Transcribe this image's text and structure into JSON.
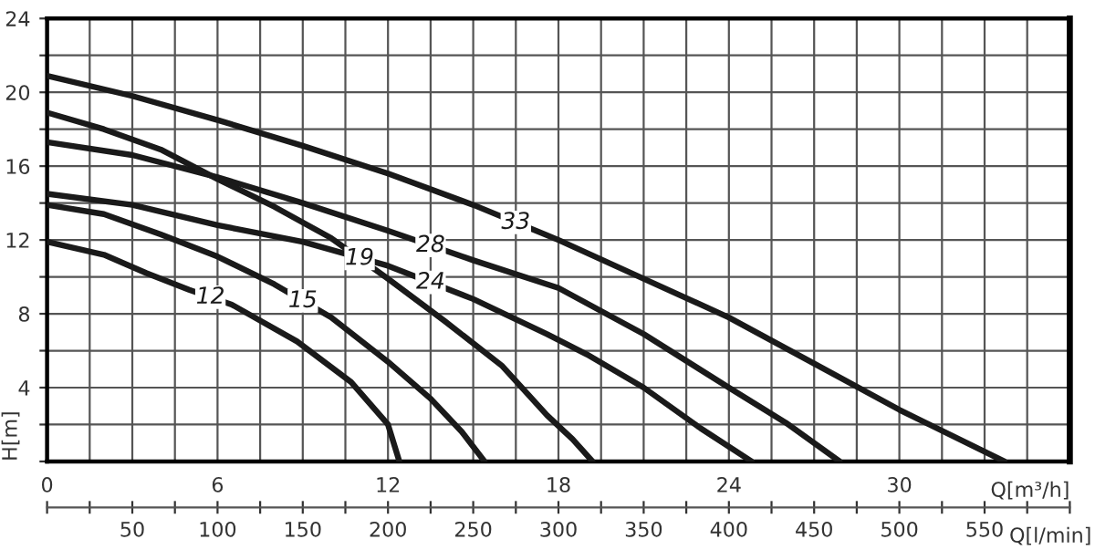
{
  "chart_data": {
    "type": "line",
    "xlabel": "Q[m³/h]",
    "ylabel": "H[m]",
    "x2label": "Q[l/min]",
    "xlim": [
      0,
      36
    ],
    "ylim": [
      0,
      24
    ],
    "x2lim": [
      0,
      600
    ],
    "xticks": [
      0,
      {
        "value": 1.5,
        "label": null
      },
      {
        "value": 3,
        "label": null
      },
      {
        "value": 4.5,
        "label": null
      },
      6,
      {
        "value": 7.5,
        "label": null
      },
      {
        "value": 9,
        "label": null
      },
      {
        "value": 10.5,
        "label": null
      },
      12,
      {
        "value": 13.5,
        "label": null
      },
      {
        "value": 15,
        "label": null
      },
      {
        "value": 16.5,
        "label": null
      },
      18,
      {
        "value": 19.5,
        "label": null
      },
      {
        "value": 21,
        "label": null
      },
      {
        "value": 22.5,
        "label": null
      },
      24,
      {
        "value": 25.5,
        "label": null
      },
      {
        "value": 27,
        "label": null
      },
      {
        "value": 28.5,
        "label": null
      },
      30,
      {
        "value": 31.5,
        "label": null
      },
      {
        "value": 33,
        "label": null
      },
      {
        "value": 34.5,
        "label": null
      },
      {
        "value": 36,
        "label": null
      }
    ],
    "yticks": [
      {
        "value": 0,
        "label": null
      },
      {
        "value": 2,
        "label": null
      },
      4,
      {
        "value": 6,
        "label": null
      },
      8,
      {
        "value": 10,
        "label": null
      },
      12,
      {
        "value": 14,
        "label": null
      },
      16,
      {
        "value": 18,
        "label": null
      },
      20,
      {
        "value": 22,
        "label": null
      },
      24
    ],
    "x2ticks": [
      {
        "value": 0,
        "label": null
      },
      {
        "value": 25,
        "label": null
      },
      50,
      {
        "value": 75,
        "label": null
      },
      100,
      {
        "value": 125,
        "label": null
      },
      150,
      {
        "value": 175,
        "label": null
      },
      200,
      {
        "value": 225,
        "label": null
      },
      250,
      {
        "value": 275,
        "label": null
      },
      300,
      {
        "value": 325,
        "label": null
      },
      350,
      {
        "value": 375,
        "label": null
      },
      400,
      {
        "value": 425,
        "label": null
      },
      450,
      {
        "value": 475,
        "label": null
      },
      500,
      {
        "value": 525,
        "label": null
      },
      550,
      {
        "value": 575,
        "label": null
      },
      {
        "value": 600,
        "label": null
      }
    ],
    "grid": true,
    "marker": "none",
    "line_style": "solid",
    "series": [
      {
        "name": "33",
        "color": "#1a1a1a",
        "x": [
          0,
          3,
          6,
          9,
          12,
          15,
          18,
          21,
          24,
          27,
          30,
          33.7
        ],
        "values": [
          20.9,
          19.8,
          18.5,
          17.1,
          15.6,
          13.9,
          12.0,
          9.9,
          7.8,
          5.3,
          2.8,
          0
        ]
      },
      {
        "name": "28",
        "color": "#1a1a1a",
        "x": [
          0,
          3,
          6,
          9,
          12,
          15,
          18,
          21,
          24,
          26,
          27.9
        ],
        "values": [
          17.3,
          16.6,
          15.4,
          14.0,
          12.5,
          10.9,
          9.4,
          6.9,
          4.0,
          2.1,
          0
        ]
      },
      {
        "name": "24",
        "color": "#1a1a1a",
        "x": [
          0,
          3,
          6,
          9,
          12,
          15,
          17.6,
          19,
          21,
          23,
          24.8
        ],
        "values": [
          14.5,
          13.9,
          12.8,
          11.9,
          10.6,
          8.8,
          6.9,
          5.8,
          4.0,
          1.8,
          0
        ]
      },
      {
        "name": "19",
        "color": "#1a1a1a",
        "x": [
          0,
          2,
          4,
          6,
          8,
          10,
          12,
          14,
          16,
          17.6,
          18.5,
          19.2
        ],
        "values": [
          18.9,
          18.0,
          16.9,
          15.3,
          13.8,
          12.1,
          9.9,
          7.6,
          5.2,
          2.5,
          1.2,
          0
        ]
      },
      {
        "name": "15",
        "color": "#1a1a1a",
        "x": [
          0,
          2,
          4,
          6,
          8,
          10,
          12,
          13.5,
          14.6,
          15.4
        ],
        "values": [
          13.9,
          13.4,
          12.3,
          11.1,
          9.6,
          7.8,
          5.4,
          3.4,
          1.6,
          0
        ]
      },
      {
        "name": "12",
        "color": "#1a1a1a",
        "x": [
          0,
          2,
          3.5,
          5,
          6.5,
          8.8,
          10.7,
          12,
          12.4
        ],
        "values": [
          11.9,
          11.2,
          10.2,
          9.3,
          8.5,
          6.5,
          4.3,
          2.0,
          0
        ]
      }
    ]
  }
}
